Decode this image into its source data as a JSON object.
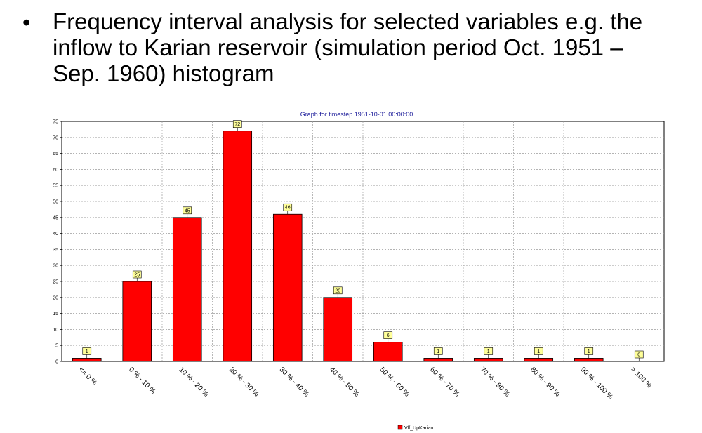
{
  "slide": {
    "bullet": "•",
    "text": "Frequency interval analysis for selected variables e.g. the inflow to Karian reservoir (simulation period Oct. 1951 – Sep. 1960) histogram"
  },
  "chart_data": {
    "type": "bar",
    "title": "Graph for timestep 1951-10-01 00:00:00",
    "categories": [
      "<= 0 %",
      "0 % - 10 %",
      "10 % - 20 %",
      "20 % - 30 %",
      "30 % - 40 %",
      "40 % - 50 %",
      "50 % - 60 %",
      "60 % - 70 %",
      "70 % - 80 %",
      "80 % - 90 %",
      "90 % - 100 %",
      "> 100 %"
    ],
    "series": [
      {
        "name": "Vlf_UpKarian",
        "values": [
          1,
          25,
          45,
          72,
          46,
          20,
          6,
          1,
          1,
          1,
          1,
          0
        ],
        "color": "#ff0000"
      }
    ],
    "ylim": [
      0,
      75
    ],
    "yticks": [
      0,
      5,
      10,
      15,
      20,
      25,
      30,
      35,
      40,
      45,
      50,
      55,
      60,
      65,
      70,
      75
    ],
    "xlabel": "",
    "ylabel": "",
    "grid": true,
    "legend_position": "bottom-center",
    "data_label_bg": "#ffff99"
  }
}
